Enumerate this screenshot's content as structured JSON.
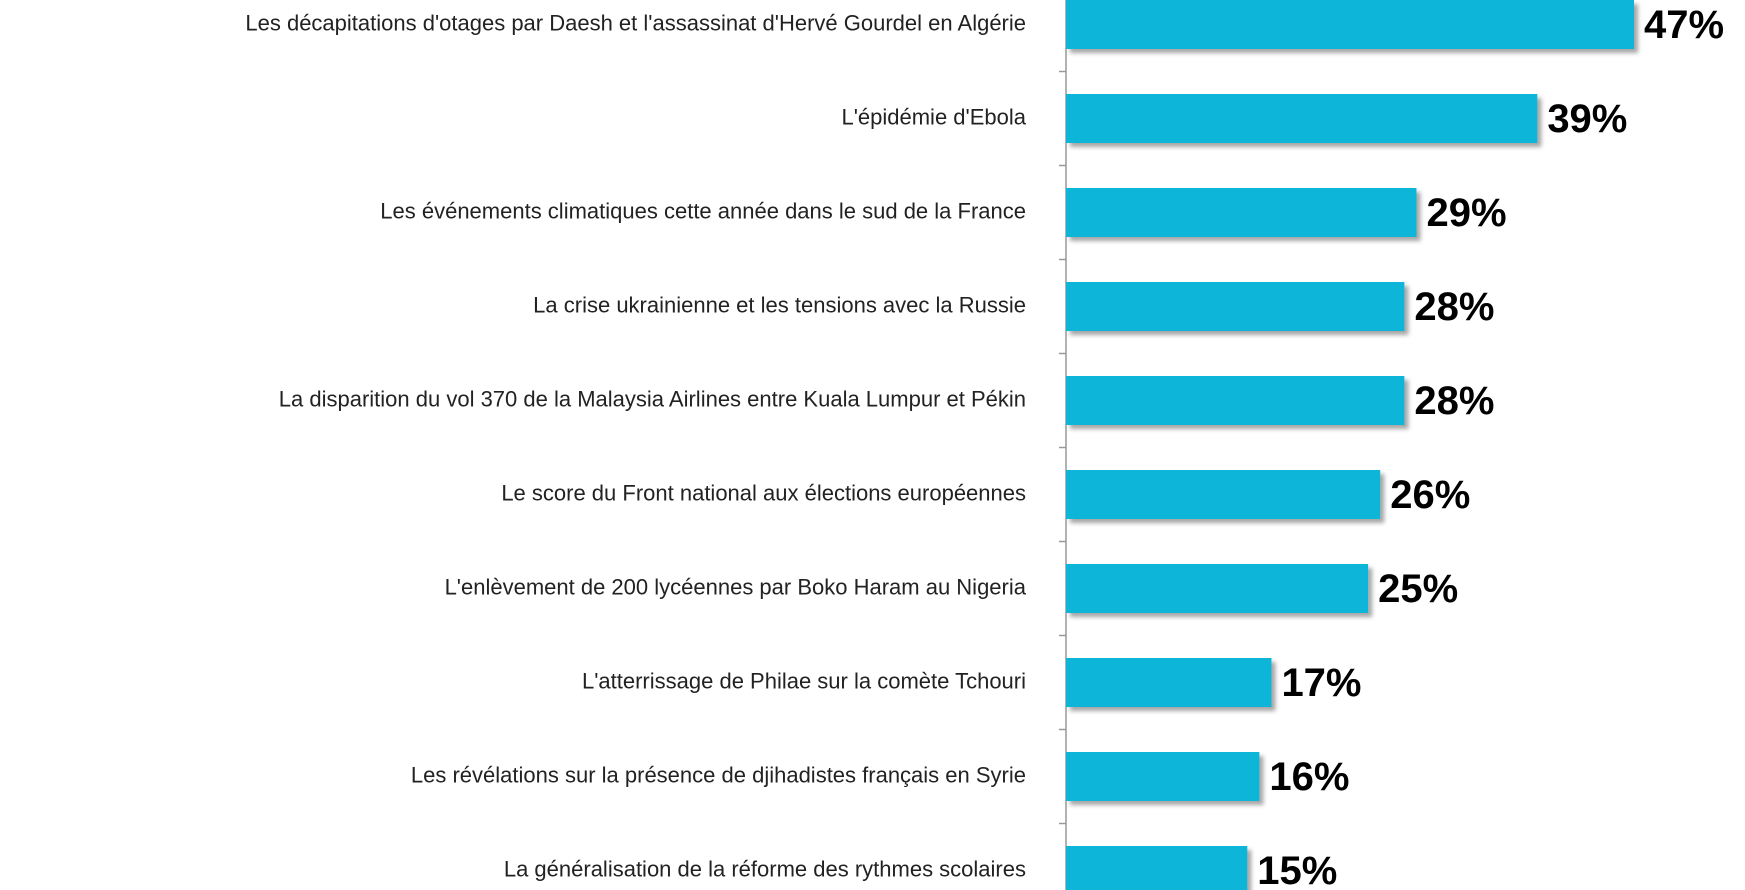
{
  "chart_data": {
    "type": "bar",
    "orientation": "horizontal",
    "categories": [
      "Les décapitations d'otages par Daesh et l'assassinat d'Hervé Gourdel en Algérie",
      "L'épidémie d'Ebola",
      "Les événements climatiques cette année dans le sud de la France",
      "La crise ukrainienne et les tensions avec la Russie",
      "La disparition du vol 370 de la Malaysia Airlines entre Kuala Lumpur et Pékin",
      "Le score du Front national aux élections européennes",
      "L'enlèvement de 200 lycéennes par Boko Haram au Nigeria",
      "L'atterrissage de Philae sur la comète Tchouri",
      "Les révélations sur la présence de djihadistes français en Syrie",
      "La généralisation de la réforme des rythmes scolaires"
    ],
    "values": [
      47,
      39,
      29,
      28,
      28,
      26,
      25,
      17,
      16,
      15
    ],
    "value_labels": [
      "47%",
      "39%",
      "29%",
      "28%",
      "28%",
      "26%",
      "25%",
      "17%",
      "16%",
      "15%"
    ],
    "color": "#0bb5d8"
  }
}
